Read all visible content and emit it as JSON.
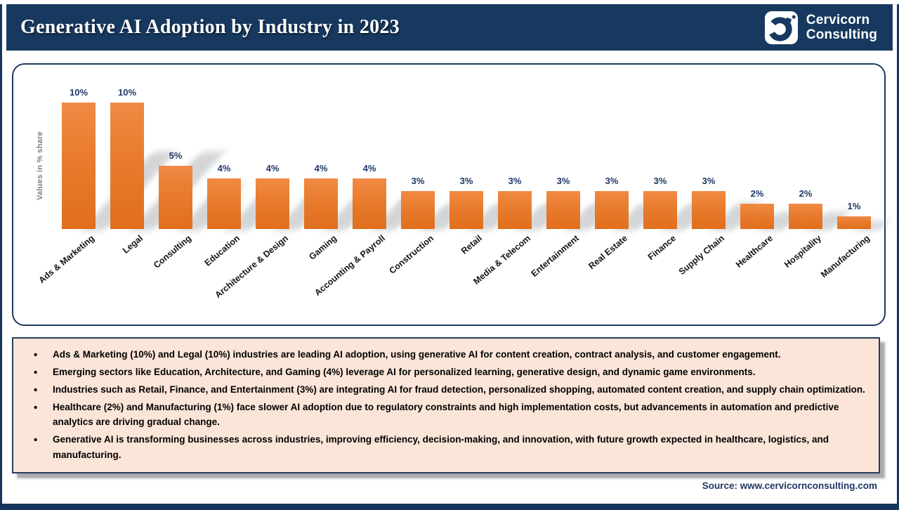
{
  "header": {
    "title": "Generative AI Adoption by Industry in 2023",
    "brand": {
      "line1": "Cervicorn",
      "line2": "Consulting"
    }
  },
  "chart_data": {
    "type": "bar",
    "title": "Generative AI Adoption by Industry in 2023",
    "ylabel": "Values in % share",
    "xlabel": "",
    "ylim": [
      0,
      11
    ],
    "grid": false,
    "legend": "none",
    "bar_color": "#e8772b",
    "categories": [
      "Ads & Marketing",
      "Legal",
      "Consulting",
      "Education",
      "Architecture & Design",
      "Gaming",
      "Accounting & Payroll",
      "Construction",
      "Retail",
      "Media & Telecom",
      "Entertainment",
      "Real Estate",
      "Finance",
      "Supply Chain",
      "Healthcare",
      "Hospitality",
      "Manufacturing"
    ],
    "values": [
      10,
      10,
      5,
      4,
      4,
      4,
      4,
      3,
      3,
      3,
      3,
      3,
      3,
      3,
      2,
      2,
      1
    ],
    "value_labels": [
      "10%",
      "10%",
      "5%",
      "4%",
      "4%",
      "4%",
      "4%",
      "3%",
      "3%",
      "3%",
      "3%",
      "3%",
      "3%",
      "3%",
      "2%",
      "2%",
      "1%"
    ]
  },
  "insights": {
    "bullets": [
      "Ads & Marketing (10%) and Legal (10%) industries are leading AI adoption, using generative AI for content creation, contract analysis, and customer engagement.",
      "Emerging sectors like Education, Architecture, and Gaming (4%) leverage AI for personalized learning, generative design, and dynamic game environments.",
      "Industries such as Retail, Finance, and Entertainment (3%) are integrating AI for fraud detection, personalized shopping, automated content creation, and supply chain optimization.",
      "Healthcare (2%) and Manufacturing (1%) face slower AI adoption due to regulatory constraints and high implementation costs, but advancements in automation and predictive analytics are driving gradual change.",
      "Generative AI is transforming businesses across industries, improving efficiency, decision-making, and innovation, with future growth expected in healthcare, logistics, and manufacturing."
    ]
  },
  "footer": {
    "source": "Source: www.cervicornconsulting.com"
  },
  "colors": {
    "header_bg": "#17395f",
    "bar_orange": "#e8772b",
    "value_label_navy": "#1f3864",
    "panel_border": "#1f3a60",
    "insights_bg": "#fbe5d8",
    "insights_border": "#243c5e",
    "frame_navy": "#16365c",
    "ylabel_gray": "#808080"
  }
}
